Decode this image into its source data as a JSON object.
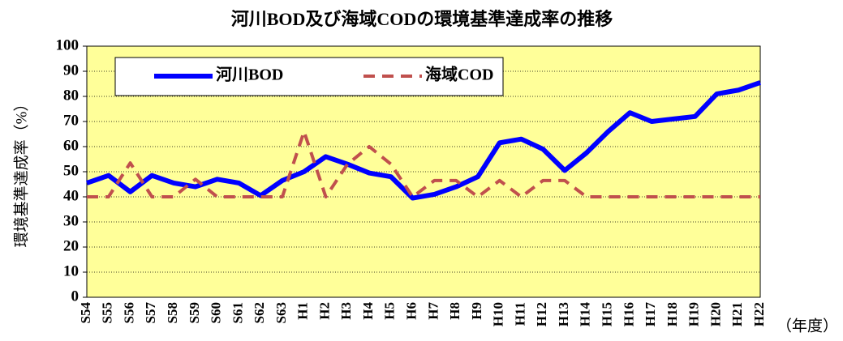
{
  "chart_data": {
    "type": "line",
    "title": "河川BOD及び海域CODの環境基準達成率の推移",
    "y_label": "環境基準達成率（%）",
    "x_label": "（年度）",
    "categories": [
      "S54",
      "S55",
      "S56",
      "S57",
      "S58",
      "S59",
      "S60",
      "S61",
      "S62",
      "S63",
      "H1",
      "H2",
      "H3",
      "H4",
      "H5",
      "H6",
      "H7",
      "H8",
      "H9",
      "H10",
      "H11",
      "H12",
      "H13",
      "H14",
      "H15",
      "H16",
      "H17",
      "H18",
      "H19",
      "H20",
      "H21",
      "H22"
    ],
    "series": [
      {
        "name": "河川BOD",
        "color": "#0000ff",
        "dash": "solid",
        "values": [
          45.5,
          48.5,
          42,
          48.5,
          45.5,
          44,
          47,
          45.5,
          40.5,
          46.5,
          50,
          56,
          53,
          49.5,
          48,
          39.5,
          41,
          44,
          48,
          61.5,
          63,
          59,
          50.5,
          57.5,
          66,
          73.5,
          70,
          71,
          72,
          81,
          82.5,
          85.5
        ]
      },
      {
        "name": "海域COD",
        "color": "#c0504d",
        "dash": "dashed",
        "values": [
          40,
          40,
          53.5,
          40,
          40,
          47,
          40,
          40,
          40,
          40,
          66,
          40,
          53,
          60,
          53,
          40,
          46.5,
          46.5,
          40,
          46.5,
          40,
          46.5,
          46.5,
          40,
          40,
          40,
          40,
          40,
          40,
          40,
          40,
          40
        ]
      }
    ],
    "ylim": [
      0,
      100
    ],
    "yticks": [
      0,
      10,
      20,
      30,
      40,
      50,
      60,
      70,
      80,
      90,
      100
    ],
    "grid": true,
    "legend": "top-left",
    "background": "#ffff99"
  }
}
